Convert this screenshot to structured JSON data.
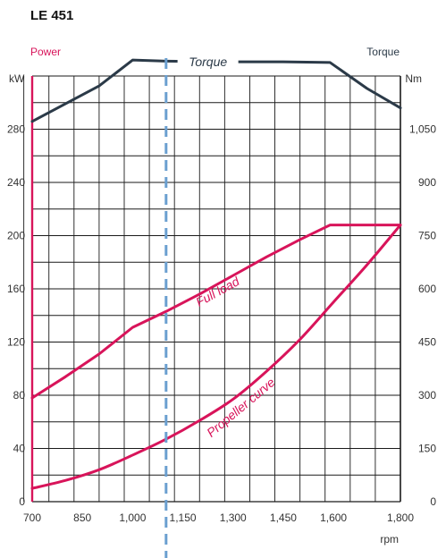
{
  "chart_data": {
    "type": "line",
    "title": "LE 451",
    "xlabel": "rpm",
    "xlim": [
      700,
      1800
    ],
    "x_ticks": [
      700,
      850,
      1000,
      1150,
      1300,
      1450,
      1600,
      1800
    ],
    "x_tick_labels": [
      "700",
      "850",
      "1,000",
      "1,150",
      "1,300",
      "1,450",
      "1,600",
      "1,800"
    ],
    "y_left": {
      "label": "Power",
      "unit": "kW",
      "range": [
        0,
        320
      ],
      "ticks": [
        0,
        40,
        80,
        120,
        160,
        200,
        240,
        280
      ],
      "tick_labels": [
        "0",
        "40",
        "80",
        "120",
        "160",
        "200",
        "240",
        "280"
      ]
    },
    "y_right": {
      "label": "Torque",
      "unit": "Nm",
      "range": [
        0,
        1200
      ],
      "ticks": [
        0,
        150,
        300,
        450,
        600,
        750,
        900,
        1050
      ],
      "tick_labels": [
        "0",
        "150",
        "300",
        "450",
        "600",
        "750",
        "900",
        "1,050"
      ]
    },
    "grid": true,
    "reference_line_rpm": 1100,
    "series": [
      {
        "name": "Torque",
        "axis": "right",
        "color": "#2b3a48",
        "x": [
          700,
          900,
          1000,
          1100,
          1300,
          1450,
          1590,
          1700,
          1800
        ],
        "y": [
          1072,
          1172,
          1245,
          1242,
          1240,
          1240,
          1238,
          1165,
          1110
        ]
      },
      {
        "name": "Full load",
        "axis": "left",
        "color": "#d8145a",
        "x": [
          700,
          800,
          900,
          1000,
          1100,
          1200,
          1300,
          1400,
          1500,
          1590,
          1700,
          1800
        ],
        "y": [
          78,
          94,
          111,
          131,
          143,
          156,
          170,
          184,
          197,
          208,
          208,
          208
        ]
      },
      {
        "name": "Propeller curve",
        "axis": "left",
        "color": "#d8145a",
        "x": [
          700,
          800,
          900,
          1000,
          1100,
          1200,
          1300,
          1400,
          1500,
          1600,
          1700,
          1800
        ],
        "y": [
          10,
          16,
          24,
          35,
          47,
          61,
          77,
          98,
          122,
          150,
          178,
          208
        ]
      }
    ]
  }
}
